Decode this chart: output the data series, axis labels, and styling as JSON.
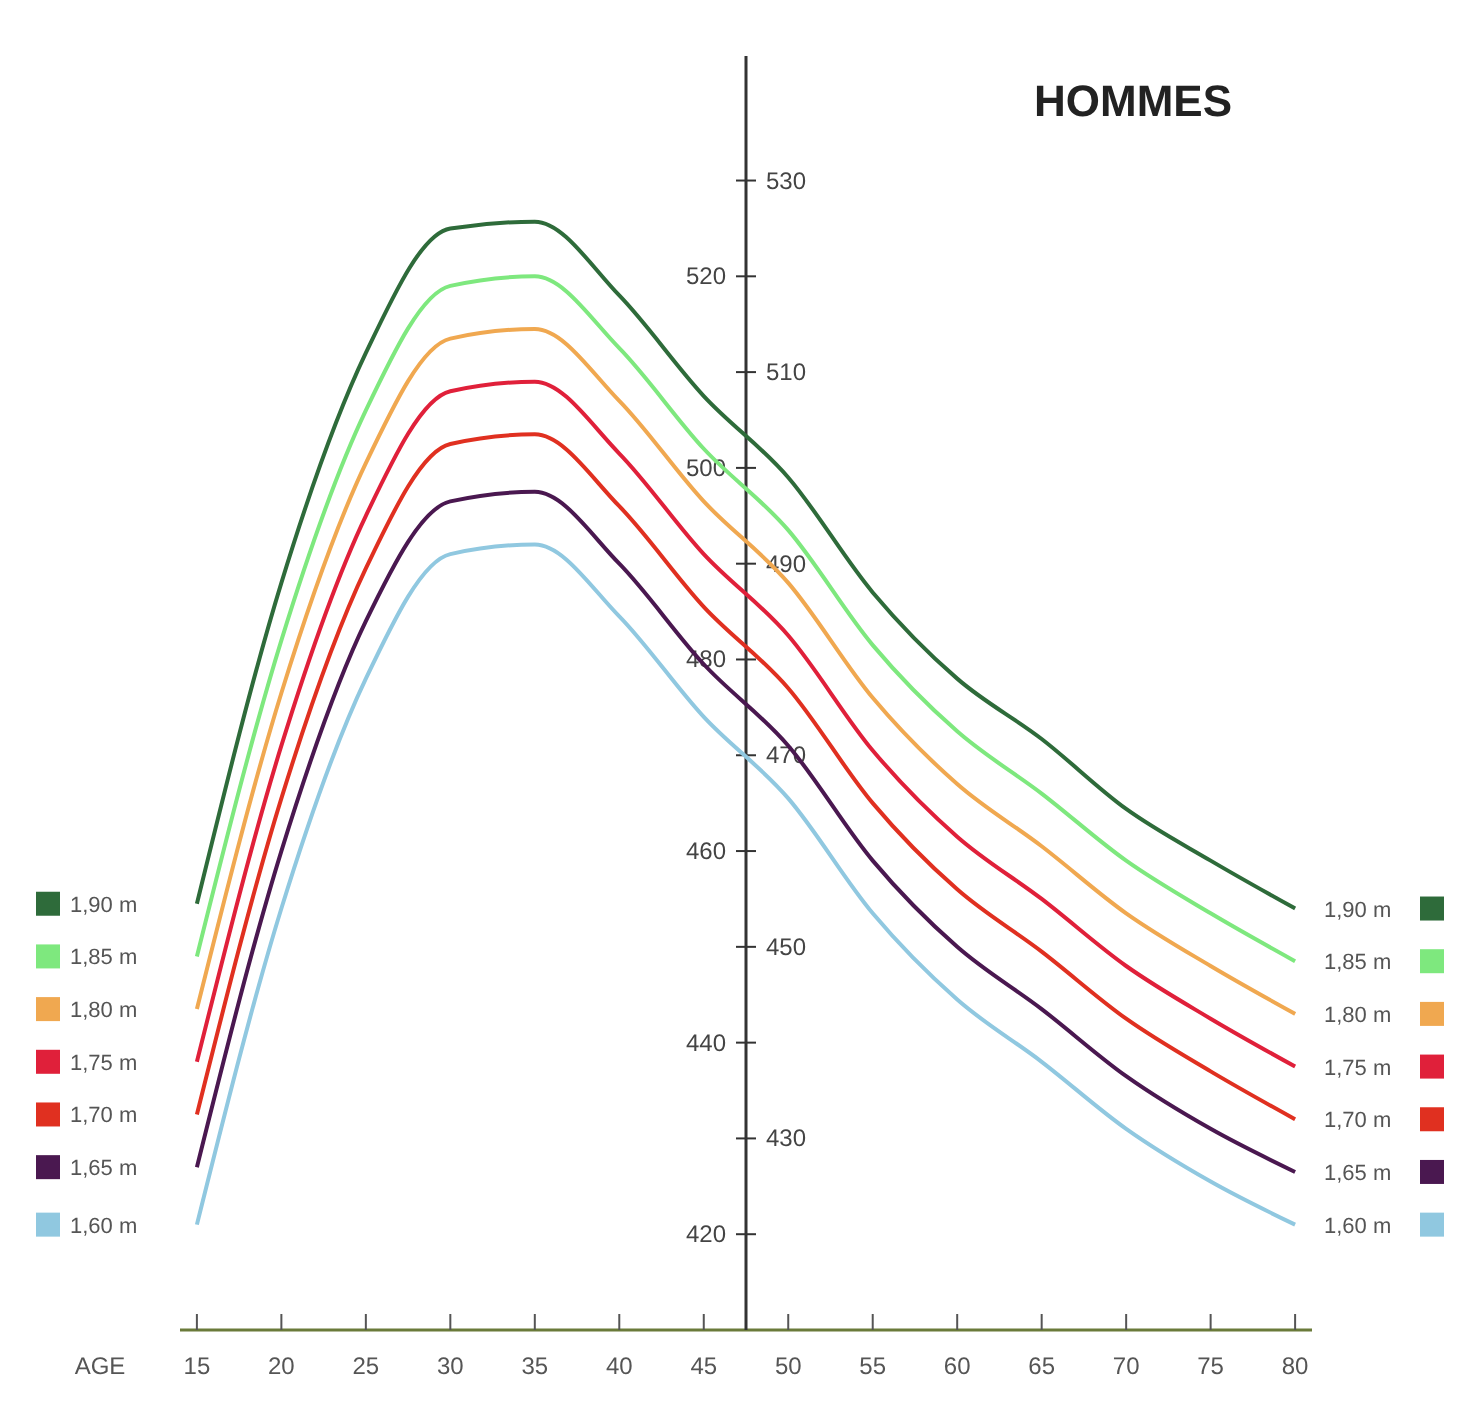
{
  "chart_data": {
    "type": "line",
    "title": "HOMMES",
    "xlabel": "AGE",
    "x": [
      15,
      20,
      25,
      30,
      35,
      40,
      45,
      50,
      55,
      60,
      65,
      70,
      75,
      80
    ],
    "xlim": [
      14,
      81
    ],
    "xticks": [
      15,
      20,
      25,
      30,
      35,
      40,
      45,
      50,
      55,
      60,
      65,
      70,
      75,
      80
    ],
    "ylim": [
      410,
      543
    ],
    "yticks": [
      420,
      440,
      460,
      480,
      500,
      520
    ],
    "y2lim": [
      410,
      543
    ],
    "y2ticks": [
      430,
      450,
      470,
      490,
      510,
      530
    ],
    "grid": false,
    "legend": "left",
    "marker": "none",
    "line_style": "solid",
    "series": [
      {
        "name": "1,90 m",
        "color": "#2e6b3a",
        "values": [
          454.5,
          488,
          512,
          525,
          525.7,
          518,
          507.5,
          499,
          487,
          478,
          471.7,
          464.4,
          459,
          454
        ]
      },
      {
        "name": "1,85 m",
        "color": "#7ee87e",
        "values": [
          449,
          482,
          506,
          519,
          520,
          512.5,
          502,
          493.5,
          481.5,
          472.5,
          466,
          459,
          453.5,
          448.5
        ]
      },
      {
        "name": "1,80 m",
        "color": "#f0a850",
        "values": [
          443.5,
          476.5,
          500.5,
          513.5,
          514.5,
          507,
          496.5,
          488,
          476,
          467,
          460.5,
          453.5,
          448,
          443
        ]
      },
      {
        "name": "1,75 m",
        "color": "#e0203a",
        "values": [
          438,
          471,
          495,
          508,
          509,
          501.5,
          491,
          482.5,
          470.5,
          461.5,
          455,
          448,
          442.5,
          437.5
        ]
      },
      {
        "name": "1,70 m",
        "color": "#e03020",
        "values": [
          432.5,
          465.5,
          489.5,
          502.5,
          503.5,
          496,
          485.5,
          477,
          465,
          456,
          449.5,
          442.5,
          437,
          432
        ]
      },
      {
        "name": "1,65 m",
        "color": "#4a1850",
        "values": [
          427,
          460,
          484,
          496.5,
          497.5,
          490,
          479.5,
          471,
          459,
          450,
          443.5,
          436.5,
          431,
          426.5
        ]
      },
      {
        "name": "1,60 m",
        "color": "#90c8e0",
        "values": [
          421,
          454,
          478,
          491,
          492,
          484.5,
          474,
          465.5,
          453.5,
          444.5,
          438,
          431,
          425.5,
          421
        ]
      }
    ]
  }
}
